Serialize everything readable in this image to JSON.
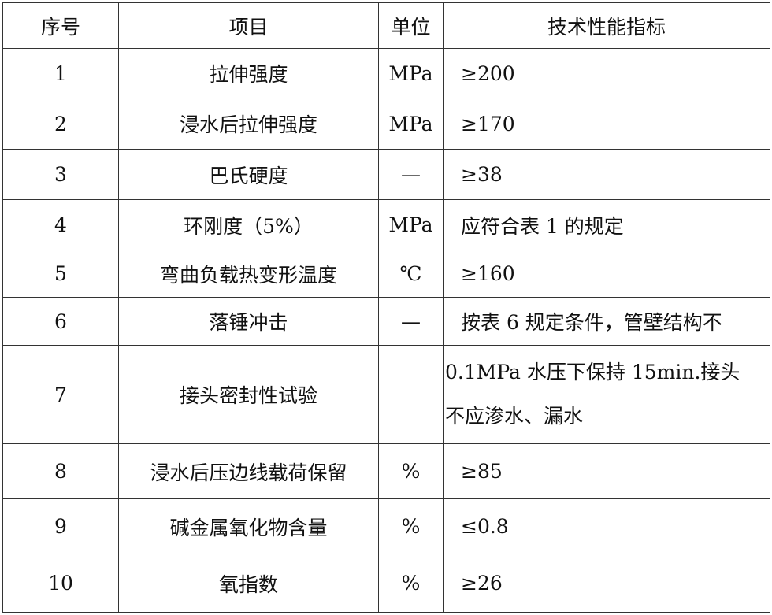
{
  "headers": [
    "序号",
    "项目",
    "单位",
    "技术性能指标"
  ],
  "rows": [
    {
      "no": "1",
      "item": "拉伸强度",
      "unit": "MPa",
      "spec": "≥200"
    },
    {
      "no": "2",
      "item": "浸水后拉伸强度",
      "unit": "MPa",
      "spec": "≥170"
    },
    {
      "no": "3",
      "item": "巴氏硬度",
      "unit": "—",
      "spec": "≥38"
    },
    {
      "no": "4",
      "item": "环刚度（5%）",
      "unit": "MPa",
      "spec": "应符合表 1 的规定"
    },
    {
      "no": "5",
      "item": "弯曲负载热变形温度",
      "unit": "℃",
      "spec": "≥160"
    },
    {
      "no": "6",
      "item": "落锤冲击",
      "unit": "—",
      "spec": "按表 6 规定条件，管壁结构不"
    },
    {
      "no": "7",
      "item": "接头密封性试验",
      "unit": "",
      "spec": "0.1MPa 水压下保持 15min.接头",
      "spec2": "不应渗水、漏水"
    },
    {
      "no": "8",
      "item": "浸水后压边线载荷保留",
      "unit": "%",
      "spec": "≥85"
    },
    {
      "no": "9",
      "item": "碱金属氧化物含量",
      "unit": "%",
      "spec": "≤0.8"
    },
    {
      "no": "10",
      "item": "氧指数",
      "unit": "%",
      "spec": "≥26"
    }
  ]
}
